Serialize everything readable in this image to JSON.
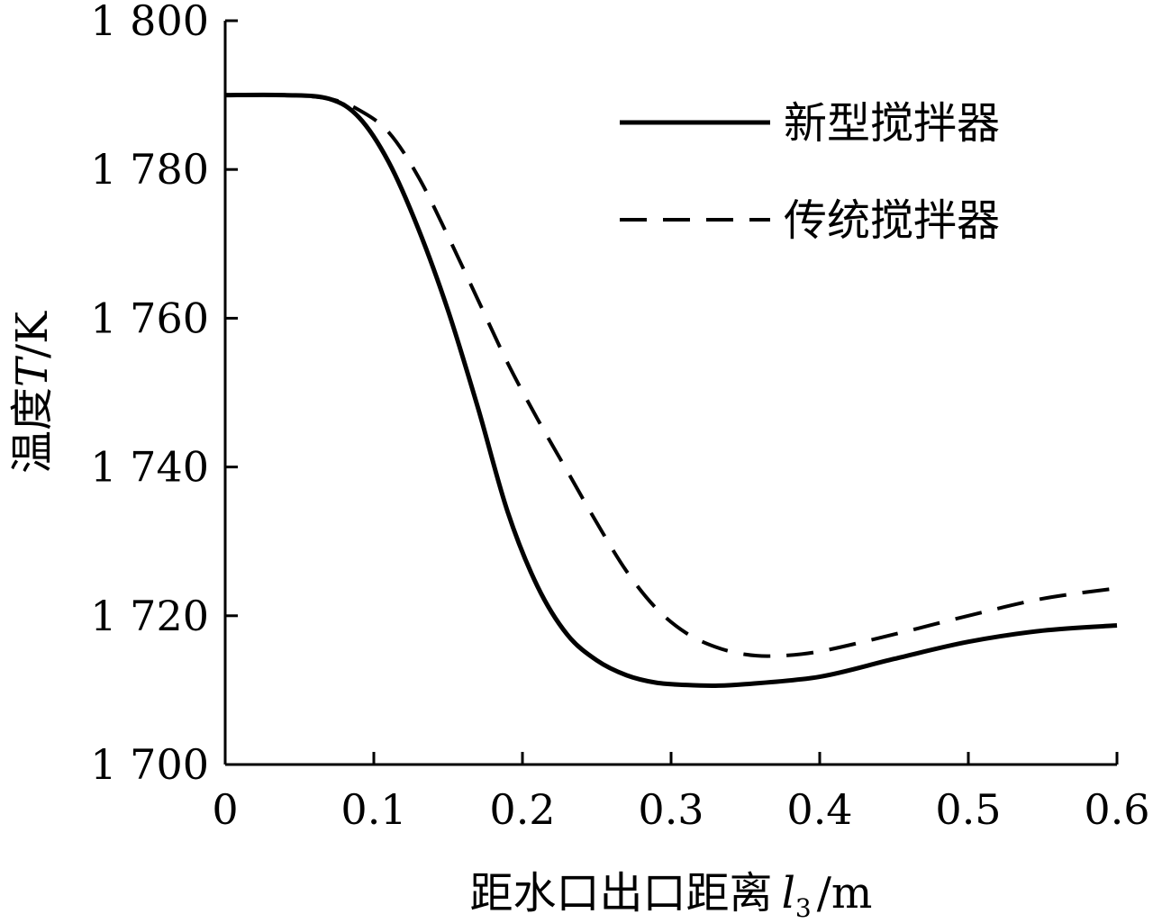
{
  "chart_data": {
    "type": "line",
    "x_axis": {
      "label_prefix": "距水口出口距离",
      "label_var": "l",
      "label_sub": "3",
      "label_suffix": "/m",
      "range": [
        0,
        0.6
      ],
      "ticks": [
        0,
        0.1,
        0.2,
        0.3,
        0.4,
        0.5,
        0.6
      ],
      "tick_labels": [
        "0",
        "0.1",
        "0.2",
        "0.3",
        "0.4",
        "0.5",
        "0.6"
      ]
    },
    "y_axis": {
      "label_prefix": "温度",
      "label_var": "T",
      "label_suffix": "/K",
      "range": [
        1700,
        1800
      ],
      "ticks": [
        1700,
        1720,
        1740,
        1760,
        1780,
        1800
      ],
      "tick_labels": [
        "1 700",
        "1 720",
        "1 740",
        "1 760",
        "1 780",
        "1 800"
      ]
    },
    "grid": false,
    "legend_position": "top-right",
    "series": [
      {
        "name": "新型搅拌器",
        "style": "solid",
        "color": "#000000",
        "x": [
          0,
          0.04,
          0.07,
          0.09,
          0.11,
          0.13,
          0.15,
          0.17,
          0.19,
          0.21,
          0.23,
          0.25,
          0.27,
          0.29,
          0.31,
          0.33,
          0.35,
          0.4,
          0.45,
          0.5,
          0.55,
          0.6
        ],
        "y": [
          1790,
          1790,
          1789.5,
          1787,
          1781,
          1772,
          1761,
          1748,
          1734,
          1724,
          1717.5,
          1714,
          1712,
          1711,
          1710.7,
          1710.6,
          1710.8,
          1711.8,
          1714.2,
          1716.5,
          1718,
          1718.7
        ]
      },
      {
        "name": "传统搅拌器",
        "style": "dashed",
        "color": "#000000",
        "x": [
          0,
          0.04,
          0.07,
          0.09,
          0.11,
          0.13,
          0.15,
          0.17,
          0.19,
          0.21,
          0.23,
          0.25,
          0.27,
          0.29,
          0.31,
          0.33,
          0.35,
          0.37,
          0.4,
          0.45,
          0.5,
          0.55,
          0.6
        ],
        "y": [
          1790,
          1790,
          1789.5,
          1788,
          1785,
          1779,
          1771,
          1762.5,
          1754,
          1746.5,
          1739.5,
          1732.5,
          1726,
          1721,
          1717.7,
          1715.8,
          1714.8,
          1714.6,
          1715.2,
          1717.5,
          1720,
          1722.3,
          1723.7
        ]
      }
    ]
  }
}
